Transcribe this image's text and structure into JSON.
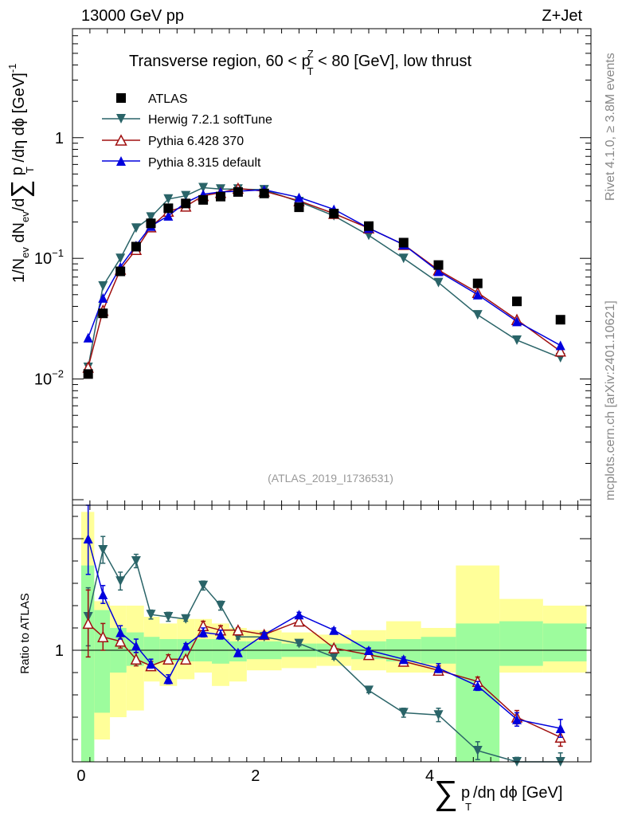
{
  "header": {
    "energy_label": "13000 GeV pp",
    "process_label": "Z+Jet"
  },
  "chart_data": {
    "type": "line",
    "title": "Transverse region, 60 < p_T^Z < 80 [GeV], low thrust",
    "title_parts": {
      "pre": "Transverse region, 60 < p",
      "sup": "Z",
      "sub": "T",
      "post": " < 80 [GeV], low thrust"
    },
    "analysis_id": "(ATLAS_2019_I1736531)",
    "side_labels": {
      "top": "Rivet 4.1.0, ≥ 3.8M events",
      "bottom": "mcplots.cern.ch [arXiv:2401.10621]"
    },
    "xlabel": {
      "sum": "∑",
      "p": "p",
      "sub": "T",
      "rest": "/dη dϕ [GeV]"
    },
    "ylabel_main": {
      "a": "1/N",
      "ev_sub": "ev",
      "b": " dN",
      "c": "/d",
      "sum": "∑",
      "p": " p",
      "sub": "T",
      "d": " /dη dϕ  [GeV]",
      "sup": "-1"
    },
    "ylabel_ratio": "Ratio to ATLAS",
    "xlim": [
      -0.1,
      5.85
    ],
    "ylim_main": [
      0.0009,
      8.0
    ],
    "ylim_ratio": [
      0.5,
      1.65
    ],
    "xticks": [
      0,
      2,
      4
    ],
    "xtick_labels": [
      "0",
      "2",
      "4"
    ],
    "yticks_main": [
      {
        "value": 1,
        "base": "1",
        "exp": ""
      },
      {
        "value": 0.1,
        "base": "10",
        "exp": "−1"
      },
      {
        "value": 0.01,
        "base": "10",
        "exp": "−2"
      }
    ],
    "yticks_ratio": [
      {
        "value": 1,
        "label": "1"
      }
    ],
    "legend": [
      "ATLAS",
      "Herwig 7.2.1 softTune",
      "Pythia 6.428 370",
      "Pythia 8.315 default"
    ],
    "colors": {
      "data": "#000000",
      "herwig": "#2a6468",
      "pythia6": "#a01010",
      "pythia8": "#0000dd",
      "band_inner": "#9dfc9d",
      "band_outer": "#ffff99"
    },
    "bins": [
      [
        0.0,
        0.15
      ],
      [
        0.15,
        0.33
      ],
      [
        0.33,
        0.52
      ],
      [
        0.52,
        0.72
      ],
      [
        0.72,
        0.9
      ],
      [
        0.9,
        1.1
      ],
      [
        1.1,
        1.3
      ],
      [
        1.3,
        1.5
      ],
      [
        1.5,
        1.7
      ],
      [
        1.7,
        1.9
      ],
      [
        1.9,
        2.3
      ],
      [
        2.3,
        2.7
      ],
      [
        2.7,
        3.1
      ],
      [
        3.1,
        3.5
      ],
      [
        3.5,
        3.9
      ],
      [
        3.9,
        4.3
      ],
      [
        4.3,
        4.8
      ],
      [
        4.8,
        5.3
      ],
      [
        5.3,
        5.8
      ]
    ],
    "x": [
      0.08,
      0.25,
      0.45,
      0.63,
      0.8,
      1.0,
      1.2,
      1.4,
      1.6,
      1.8,
      2.1,
      2.5,
      2.9,
      3.3,
      3.7,
      4.1,
      4.55,
      5.0,
      5.5
    ],
    "series": [
      {
        "name": "ATLAS",
        "key": "data",
        "marker": "square",
        "values": [
          0.011,
          0.035,
          0.078,
          0.125,
          0.195,
          0.26,
          0.285,
          0.305,
          0.325,
          0.355,
          0.345,
          0.265,
          0.235,
          0.185,
          0.135,
          0.088,
          0.062,
          0.044,
          0.031
        ]
      },
      {
        "name": "Herwig 7.2.1 softTune",
        "key": "herwig",
        "marker": "tri_down",
        "values": [
          0.0125,
          0.059,
          0.1,
          0.178,
          0.22,
          0.31,
          0.33,
          0.385,
          0.375,
          0.375,
          0.37,
          0.295,
          0.225,
          0.155,
          0.1,
          0.063,
          0.034,
          0.021,
          0.015
        ],
        "ratio": [
          1.15,
          1.45,
          1.31,
          1.4,
          1.16,
          1.15,
          1.14,
          1.29,
          1.2,
          1.06,
          1.06,
          1.03,
          0.97,
          0.82,
          0.72,
          0.71,
          0.55,
          0.48,
          0.48
        ],
        "ratio_err": [
          0.13,
          0.06,
          0.04,
          0.03,
          0.02,
          0.02,
          0.01,
          0.02,
          0.02,
          0.01,
          0.01,
          0.01,
          0.01,
          0.01,
          0.02,
          0.03,
          0.04,
          0.04,
          0.06
        ]
      },
      {
        "name": "Pythia 6.428 370",
        "key": "pythia6",
        "marker": "tri_open",
        "values": [
          0.0125,
          0.037,
          0.081,
          0.118,
          0.182,
          0.245,
          0.27,
          0.33,
          0.35,
          0.38,
          0.36,
          0.3,
          0.235,
          0.178,
          0.13,
          0.08,
          0.052,
          0.031,
          0.017
        ],
        "ratio": [
          1.12,
          1.06,
          1.04,
          0.96,
          0.93,
          0.96,
          0.96,
          1.11,
          1.09,
          1.09,
          1.07,
          1.13,
          1.01,
          0.98,
          0.95,
          0.91,
          0.86,
          0.7,
          0.61
        ],
        "ratio_err": [
          0.15,
          0.06,
          0.03,
          0.03,
          0.02,
          0.02,
          0.01,
          0.02,
          0.02,
          0.01,
          0.01,
          0.01,
          0.01,
          0.01,
          0.01,
          0.02,
          0.02,
          0.03,
          0.04
        ]
      },
      {
        "name": "Pythia 8.315 default",
        "key": "pythia8",
        "marker": "tri_up",
        "values": [
          0.022,
          0.047,
          0.085,
          0.128,
          0.185,
          0.225,
          0.29,
          0.34,
          0.355,
          0.36,
          0.37,
          0.32,
          0.255,
          0.178,
          0.13,
          0.078,
          0.05,
          0.03,
          0.019
        ],
        "ratio": [
          1.5,
          1.25,
          1.08,
          1.02,
          0.94,
          0.87,
          1.02,
          1.08,
          1.07,
          0.99,
          1.07,
          1.16,
          1.09,
          1.0,
          0.96,
          0.92,
          0.84,
          0.69,
          0.65
        ],
        "ratio_err": [
          0.16,
          0.04,
          0.03,
          0.03,
          0.02,
          0.02,
          0.01,
          0.02,
          0.02,
          0.01,
          0.01,
          0.01,
          0.01,
          0.01,
          0.01,
          0.02,
          0.02,
          0.03,
          0.04
        ]
      }
    ],
    "bands": {
      "outer": [
        [
          0.55,
          1.62
        ],
        [
          0.6,
          1.22
        ],
        [
          0.7,
          1.2
        ],
        [
          0.73,
          1.2
        ],
        [
          0.86,
          1.15
        ],
        [
          0.84,
          1.12
        ],
        [
          0.87,
          1.14
        ],
        [
          0.9,
          1.14
        ],
        [
          0.84,
          1.12
        ],
        [
          0.86,
          1.1
        ],
        [
          0.91,
          1.09
        ],
        [
          0.92,
          1.08
        ],
        [
          0.93,
          1.07
        ],
        [
          0.91,
          1.09
        ],
        [
          0.9,
          1.13
        ],
        [
          0.9,
          1.1
        ],
        [
          0.5,
          1.38
        ],
        [
          0.9,
          1.23
        ],
        [
          0.9,
          1.2
        ]
      ],
      "inner": [
        [
          0.5,
          1.38
        ],
        [
          0.72,
          1.18
        ],
        [
          0.9,
          1.1
        ],
        [
          0.93,
          1.08
        ],
        [
          0.94,
          1.06
        ],
        [
          0.95,
          1.05
        ],
        [
          0.95,
          1.05
        ],
        [
          0.95,
          1.05
        ],
        [
          0.94,
          1.05
        ],
        [
          0.95,
          1.04
        ],
        [
          0.96,
          1.04
        ],
        [
          0.97,
          1.03
        ],
        [
          0.97,
          1.03
        ],
        [
          0.96,
          1.04
        ],
        [
          0.95,
          1.05
        ],
        [
          0.94,
          1.06
        ],
        [
          0.5,
          1.12
        ],
        [
          0.93,
          1.13
        ],
        [
          0.95,
          1.12
        ]
      ]
    }
  }
}
